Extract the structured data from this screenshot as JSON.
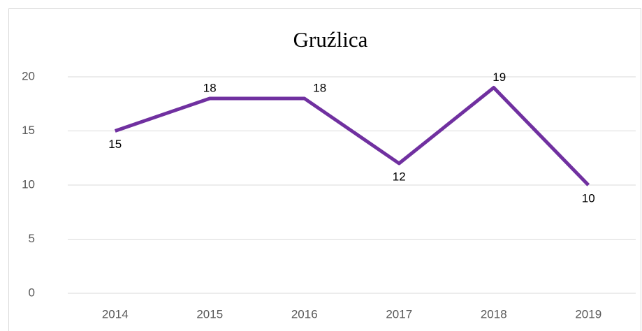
{
  "chart_data": {
    "type": "line",
    "title": "Gruźlica",
    "categories": [
      "2014",
      "2015",
      "2016",
      "2017",
      "2018",
      "2019"
    ],
    "values": [
      15,
      18,
      18,
      12,
      19,
      10
    ],
    "color": "#7030a0",
    "ylim": [
      0,
      20
    ],
    "yticks": [
      0,
      5,
      10,
      15,
      20
    ],
    "grid": true
  }
}
